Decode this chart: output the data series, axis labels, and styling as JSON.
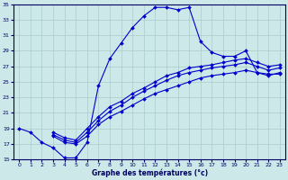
{
  "xlabel": "Graphe des températures (°c)",
  "background_color": "#cce8e8",
  "grid_color": "#aacccc",
  "line_color": "#0000cc",
  "xlim": [
    -0.5,
    23.5
  ],
  "ylim": [
    15,
    35
  ],
  "xticks": [
    0,
    1,
    2,
    3,
    4,
    5,
    6,
    7,
    8,
    9,
    10,
    11,
    12,
    13,
    14,
    15,
    16,
    17,
    18,
    19,
    20,
    21,
    22,
    23
  ],
  "yticks": [
    15,
    17,
    19,
    21,
    23,
    25,
    27,
    29,
    31,
    33,
    35
  ],
  "curve1_x": [
    0,
    1,
    2,
    3,
    4,
    5,
    6,
    7,
    8,
    9,
    10,
    11,
    12,
    13,
    14,
    15,
    16,
    17,
    18,
    19,
    20,
    21,
    22,
    23
  ],
  "curve1_y": [
    19,
    18.5,
    17.2,
    16.5,
    15.2,
    15.2,
    17.2,
    24.5,
    28.0,
    30.0,
    32.0,
    33.5,
    34.6,
    34.6,
    34.3,
    34.6,
    30.2,
    28.8,
    28.3,
    28.3,
    29.0,
    26.2,
    26.0,
    26.0
  ],
  "curve2_x": [
    3,
    4,
    5,
    6,
    7,
    8,
    9,
    10,
    11,
    12,
    13,
    14,
    15,
    16,
    17,
    18,
    19,
    20,
    21,
    22,
    23
  ],
  "curve2_y": [
    18.0,
    17.2,
    17.0,
    18.0,
    19.5,
    20.5,
    21.2,
    22.0,
    22.8,
    23.5,
    24.0,
    24.5,
    25.0,
    25.5,
    25.8,
    26.0,
    26.2,
    26.5,
    26.2,
    25.8,
    26.2
  ],
  "curve3_x": [
    3,
    4,
    5,
    6,
    7,
    8,
    9,
    10,
    11,
    12,
    13,
    14,
    15,
    16,
    17,
    18,
    19,
    20,
    21,
    22,
    23
  ],
  "curve3_y": [
    18.2,
    17.5,
    17.2,
    18.5,
    20.0,
    21.2,
    22.0,
    23.0,
    23.8,
    24.5,
    25.2,
    25.8,
    26.2,
    26.5,
    26.8,
    27.0,
    27.2,
    27.5,
    27.0,
    26.5,
    26.8
  ],
  "curve4_x": [
    3,
    4,
    5,
    6,
    7,
    8,
    9,
    10,
    11,
    12,
    13,
    14,
    15,
    16,
    17,
    18,
    19,
    20,
    21,
    22,
    23
  ],
  "curve4_y": [
    18.5,
    17.8,
    17.5,
    19.0,
    20.5,
    21.8,
    22.5,
    23.5,
    24.2,
    25.0,
    25.8,
    26.2,
    26.8,
    27.0,
    27.2,
    27.5,
    27.8,
    28.0,
    27.5,
    27.0,
    27.2
  ]
}
